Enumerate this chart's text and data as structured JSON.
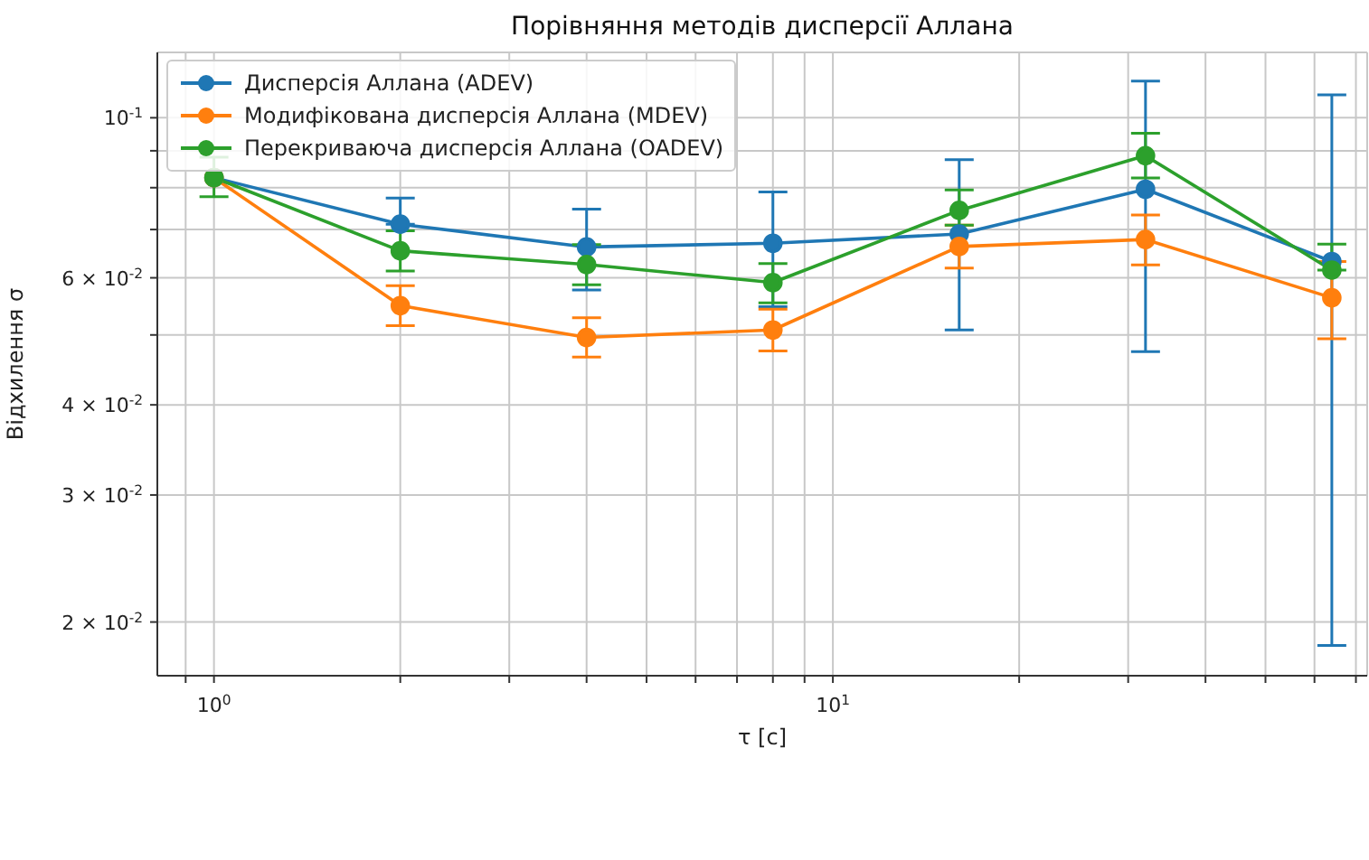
{
  "chart_data": {
    "type": "line",
    "title": "Порівняння методів дисперсії Аллана",
    "xlabel": "τ [c]",
    "ylabel": "Відхилення σ",
    "x": [
      1,
      2,
      4,
      8,
      16,
      32,
      64
    ],
    "series": [
      {
        "name": "Дисперсія Аллана (ADEV)",
        "color": "#1f77b4",
        "values": [
          0.0826,
          0.0712,
          0.0662,
          0.067,
          0.069,
          0.0796,
          0.0632
        ],
        "errors": [
          null,
          [
            0.0712,
            0.0774
          ],
          [
            0.0577,
            0.0747
          ],
          [
            0.0547,
            0.0789
          ],
          [
            0.0508,
            0.0875
          ],
          [
            0.0474,
            0.1124
          ],
          [
            0.01856,
            0.1076
          ]
        ]
      },
      {
        "name": "Модифікована дисперсія Аллана (MDEV)",
        "color": "#ff7f0e",
        "values": [
          0.0826,
          0.0549,
          0.0496,
          0.0508,
          0.0663,
          0.0678,
          0.0563
        ],
        "errors": [
          null,
          [
            0.0515,
            0.0585
          ],
          [
            0.0466,
            0.0528
          ],
          [
            0.0475,
            0.0543
          ],
          [
            0.0619,
            0.071
          ],
          [
            0.0625,
            0.0733
          ],
          [
            0.0494,
            0.0632
          ]
        ]
      },
      {
        "name": "Перекриваюча дисперсія Аллана (OADEV)",
        "color": "#2ca02c",
        "values": [
          0.0826,
          0.0654,
          0.0626,
          0.0591,
          0.0744,
          0.0886,
          0.0615
        ],
        "errors": [
          [
            0.0777,
            0.0882
          ],
          [
            0.0613,
            0.0697
          ],
          [
            0.0587,
            0.0667
          ],
          [
            0.0554,
            0.0628
          ],
          [
            0.071,
            0.0794
          ],
          [
            0.0825,
            0.0952
          ],
          [
            0.0615,
            0.0668
          ]
        ]
      }
    ],
    "log": "xy",
    "xlim": [
      0.81,
      73
    ],
    "ylim": [
      0.01685,
      0.1232
    ],
    "xticks": [
      {
        "value": 0.9,
        "label": null
      },
      {
        "value": 1,
        "label": "10$^{0}$"
      },
      {
        "value": 2,
        "label": null
      },
      {
        "value": 3,
        "label": null
      },
      {
        "value": 4,
        "label": null
      },
      {
        "value": 5,
        "label": null
      },
      {
        "value": 6,
        "label": null
      },
      {
        "value": 7,
        "label": null
      },
      {
        "value": 8,
        "label": null
      },
      {
        "value": 9,
        "label": null
      },
      {
        "value": 10,
        "label": "10$^{1}$"
      },
      {
        "value": 20,
        "label": null
      },
      {
        "value": 30,
        "label": null
      },
      {
        "value": 40,
        "label": null
      },
      {
        "value": 50,
        "label": null
      },
      {
        "value": 60,
        "label": null
      },
      {
        "value": 70,
        "label": null
      }
    ],
    "yticks": [
      {
        "value": 0.02,
        "label": "2 × 10$^{-2}$"
      },
      {
        "value": 0.03,
        "label": "3 × 10$^{-2}$"
      },
      {
        "value": 0.04,
        "label": "4 × 10$^{-2}$"
      },
      {
        "value": 0.05,
        "label": null
      },
      {
        "value": 0.06,
        "label": "6 × 10$^{-2}$"
      },
      {
        "value": 0.07,
        "label": null
      },
      {
        "value": 0.08,
        "label": null
      },
      {
        "value": 0.09,
        "label": null
      },
      {
        "value": 0.1,
        "label": "10$^{-1}$"
      }
    ],
    "grid": true,
    "legend": "top left",
    "marker": "circle",
    "line_style": "solid"
  }
}
